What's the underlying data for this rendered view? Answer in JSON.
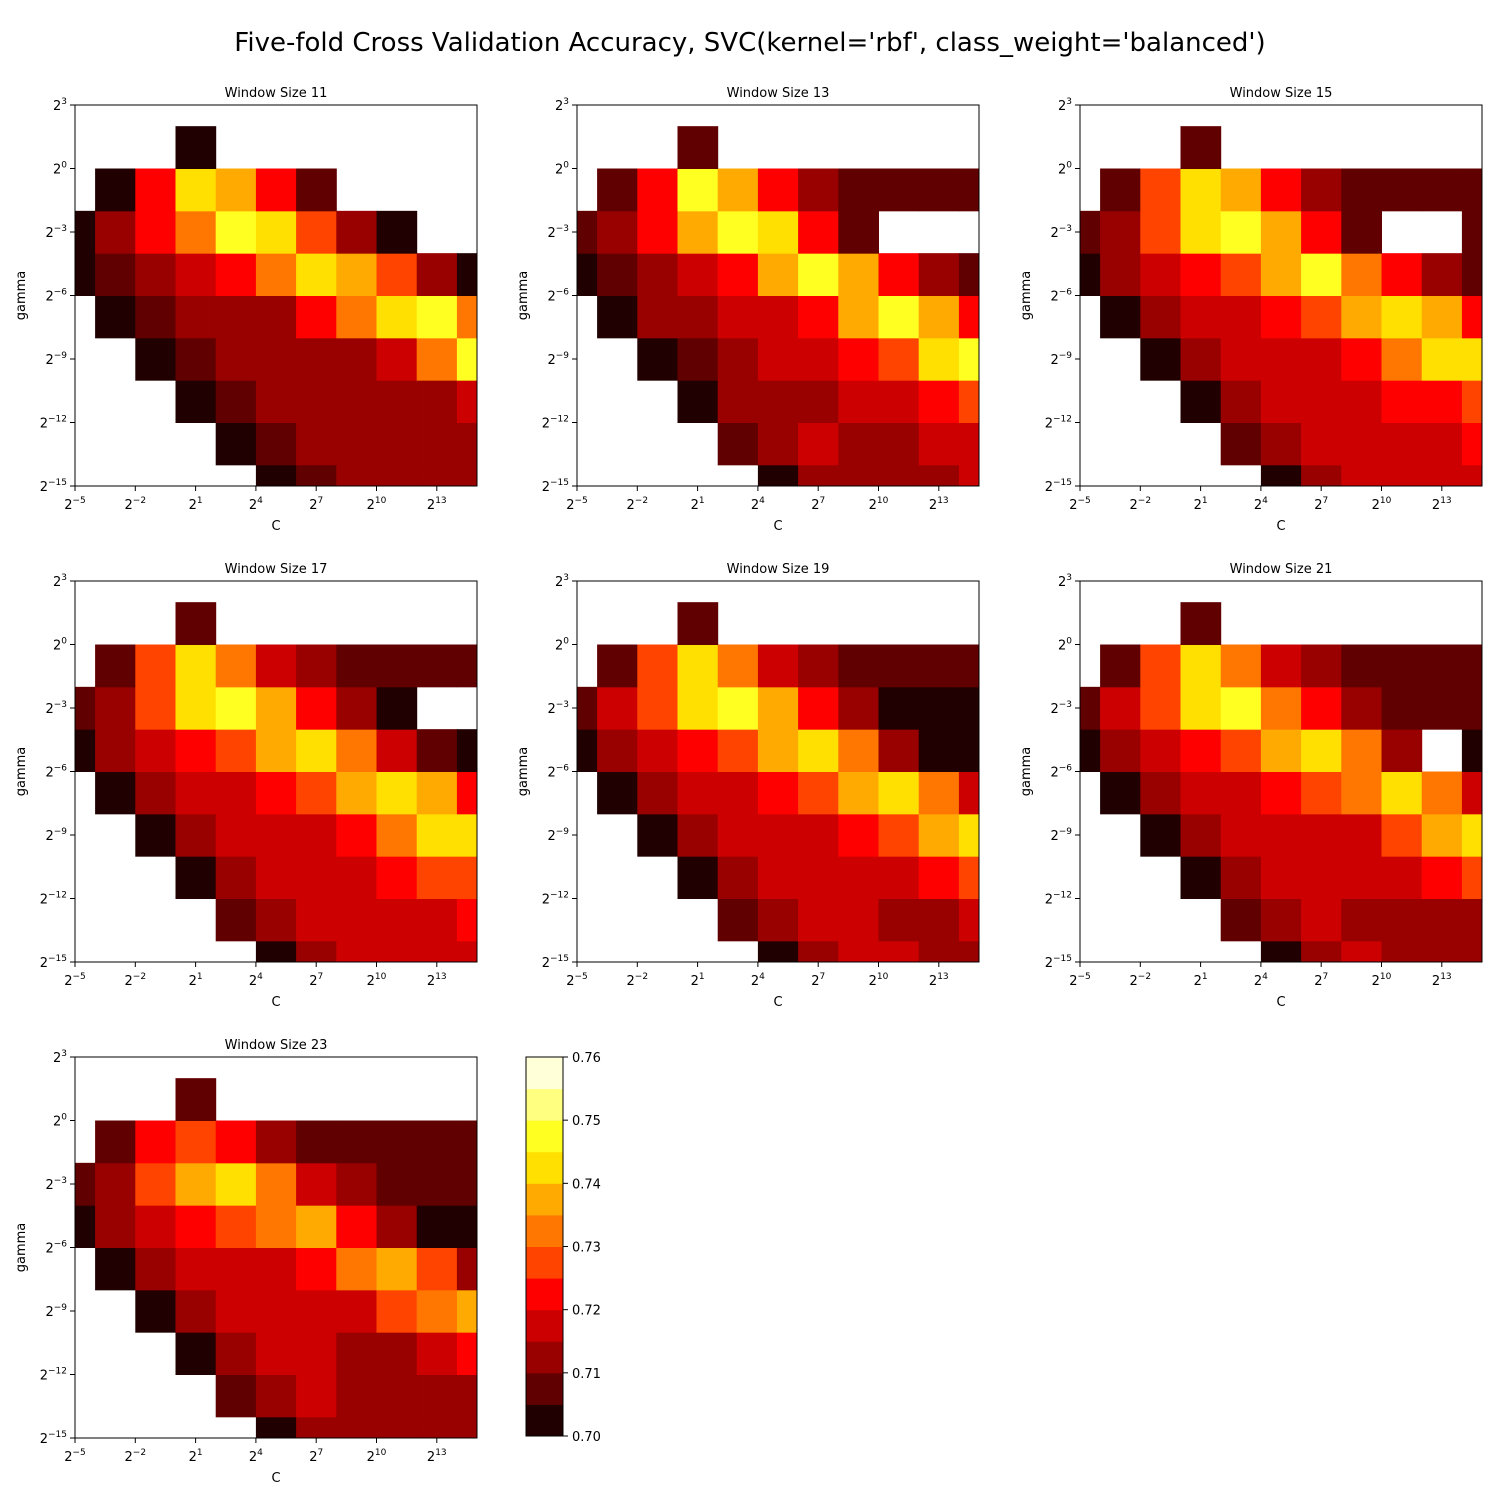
{
  "figure": {
    "title": "Five-fold Cross Validation Accuracy, SVC(kernel='rbf', class_weight='balanced')"
  },
  "chart_data": [
    {
      "type": "heatmap",
      "title": "Window Size 11",
      "xlabel": "C",
      "ylabel": "gamma",
      "x_exponents": [
        -5,
        -3,
        -1,
        1,
        3,
        5,
        7,
        9,
        11,
        13,
        15
      ],
      "y_exponents": [
        -15,
        -13,
        -11,
        -9,
        -7,
        -5,
        -3,
        -1,
        1,
        3
      ],
      "accuracy_grid": [
        [
          0,
          0,
          0,
          0,
          0,
          0.703,
          0.708,
          0.711,
          0.711,
          0.711,
          0.711
        ],
        [
          0,
          0,
          0,
          0,
          0.704,
          0.709,
          0.714,
          0.712,
          0.711,
          0.711,
          0.711
        ],
        [
          0,
          0,
          0,
          0.702,
          0.708,
          0.713,
          0.714,
          0.713,
          0.712,
          0.713,
          0.718
        ],
        [
          0,
          0,
          0.703,
          0.708,
          0.712,
          0.713,
          0.713,
          0.714,
          0.719,
          0.732,
          0.746
        ],
        [
          0,
          0.703,
          0.709,
          0.713,
          0.712,
          0.713,
          0.72,
          0.73,
          0.744,
          0.748,
          0.732
        ],
        [
          0.701,
          0.708,
          0.713,
          0.716,
          0.72,
          0.73,
          0.744,
          0.737,
          0.725,
          0.712,
          0.701
        ],
        [
          0.704,
          0.711,
          0.72,
          0.732,
          0.746,
          0.741,
          0.726,
          0.711,
          0.704,
          0.69,
          0.68
        ],
        [
          0.69,
          0.704,
          0.72,
          0.743,
          0.736,
          0.72,
          0.705,
          0.69,
          0.68,
          0.68,
          0.68
        ],
        [
          0.68,
          0.69,
          0.69,
          0.7,
          0.69,
          0.68,
          0.68,
          0.68,
          0.68,
          0.68,
          0.68
        ],
        [
          0.68,
          0.68,
          0.68,
          0.68,
          0.68,
          0.68,
          0.68,
          0.68,
          0.68,
          0.68,
          0.68
        ]
      ]
    },
    {
      "type": "heatmap",
      "title": "Window Size 13",
      "xlabel": "C",
      "ylabel": "gamma",
      "x_exponents": [
        -5,
        -3,
        -1,
        1,
        3,
        5,
        7,
        9,
        11,
        13,
        15
      ],
      "y_exponents": [
        -15,
        -13,
        -11,
        -9,
        -7,
        -5,
        -3,
        -1,
        1,
        3
      ],
      "accuracy_grid": [
        [
          0,
          0,
          0,
          0,
          0,
          0.704,
          0.713,
          0.714,
          0.714,
          0.714,
          0.715
        ],
        [
          0,
          0,
          0,
          0,
          0.705,
          0.711,
          0.715,
          0.714,
          0.711,
          0.716,
          0.718
        ],
        [
          0,
          0,
          0,
          0.703,
          0.71,
          0.714,
          0.714,
          0.716,
          0.719,
          0.721,
          0.726
        ],
        [
          0,
          0,
          0.704,
          0.709,
          0.714,
          0.715,
          0.716,
          0.72,
          0.729,
          0.74,
          0.745
        ],
        [
          0,
          0.704,
          0.71,
          0.714,
          0.715,
          0.717,
          0.724,
          0.736,
          0.745,
          0.738,
          0.722
        ],
        [
          0.702,
          0.709,
          0.714,
          0.717,
          0.724,
          0.736,
          0.746,
          0.735,
          0.72,
          0.712,
          0.705
        ],
        [
          0.705,
          0.712,
          0.724,
          0.738,
          0.748,
          0.74,
          0.722,
          0.709,
          0.69,
          0.69,
          0.69
        ],
        [
          0.69,
          0.705,
          0.724,
          0.745,
          0.735,
          0.72,
          0.71,
          0.705,
          0.705,
          0.705,
          0.705
        ],
        [
          0.68,
          0.69,
          0.69,
          0.705,
          0.69,
          0.68,
          0.68,
          0.68,
          0.68,
          0.68,
          0.68
        ],
        [
          0.68,
          0.68,
          0.68,
          0.68,
          0.68,
          0.68,
          0.68,
          0.68,
          0.68,
          0.68,
          0.68
        ]
      ]
    },
    {
      "type": "heatmap",
      "title": "Window Size 15",
      "xlabel": "C",
      "ylabel": "gamma",
      "x_exponents": [
        -5,
        -3,
        -1,
        1,
        3,
        5,
        7,
        9,
        11,
        13,
        15
      ],
      "y_exponents": [
        -15,
        -13,
        -11,
        -9,
        -7,
        -5,
        -3,
        -1,
        1,
        3
      ],
      "accuracy_grid": [
        [
          0,
          0,
          0,
          0,
          0,
          0.704,
          0.713,
          0.715,
          0.715,
          0.715,
          0.715
        ],
        [
          0,
          0,
          0,
          0,
          0.705,
          0.712,
          0.716,
          0.715,
          0.715,
          0.717,
          0.72
        ],
        [
          0,
          0,
          0,
          0.703,
          0.71,
          0.715,
          0.716,
          0.717,
          0.72,
          0.724,
          0.728
        ],
        [
          0,
          0,
          0.704,
          0.71,
          0.715,
          0.716,
          0.718,
          0.722,
          0.731,
          0.742,
          0.744
        ],
        [
          0,
          0.704,
          0.71,
          0.716,
          0.718,
          0.72,
          0.727,
          0.737,
          0.744,
          0.737,
          0.722
        ],
        [
          0.702,
          0.71,
          0.716,
          0.72,
          0.727,
          0.738,
          0.746,
          0.734,
          0.72,
          0.712,
          0.705
        ],
        [
          0.705,
          0.714,
          0.726,
          0.74,
          0.748,
          0.738,
          0.722,
          0.708,
          0.69,
          0.69,
          0.705
        ],
        [
          0.69,
          0.705,
          0.726,
          0.744,
          0.735,
          0.72,
          0.71,
          0.706,
          0.706,
          0.706,
          0.706
        ],
        [
          0.68,
          0.69,
          0.69,
          0.705,
          0.69,
          0.68,
          0.68,
          0.68,
          0.68,
          0.68,
          0.68
        ],
        [
          0.68,
          0.68,
          0.68,
          0.68,
          0.68,
          0.68,
          0.68,
          0.68,
          0.68,
          0.68,
          0.68
        ]
      ]
    },
    {
      "type": "heatmap",
      "title": "Window Size 17",
      "xlabel": "C",
      "ylabel": "gamma",
      "x_exponents": [
        -5,
        -3,
        -1,
        1,
        3,
        5,
        7,
        9,
        11,
        13,
        15
      ],
      "y_exponents": [
        -15,
        -13,
        -11,
        -9,
        -7,
        -5,
        -3,
        -1,
        1,
        3
      ],
      "accuracy_grid": [
        [
          0,
          0,
          0,
          0,
          0,
          0.704,
          0.714,
          0.716,
          0.716,
          0.716,
          0.716
        ],
        [
          0,
          0,
          0,
          0,
          0.706,
          0.713,
          0.717,
          0.716,
          0.716,
          0.718,
          0.721
        ],
        [
          0,
          0,
          0,
          0.703,
          0.711,
          0.716,
          0.717,
          0.718,
          0.721,
          0.725,
          0.729
        ],
        [
          0,
          0,
          0.704,
          0.711,
          0.716,
          0.717,
          0.719,
          0.723,
          0.73,
          0.74,
          0.743
        ],
        [
          0,
          0.704,
          0.711,
          0.716,
          0.718,
          0.721,
          0.727,
          0.735,
          0.742,
          0.735,
          0.722
        ],
        [
          0.702,
          0.711,
          0.716,
          0.721,
          0.728,
          0.738,
          0.744,
          0.732,
          0.715,
          0.705,
          0.702
        ],
        [
          0.705,
          0.714,
          0.727,
          0.74,
          0.747,
          0.735,
          0.72,
          0.71,
          0.7,
          0.69,
          0.69
        ],
        [
          0.69,
          0.705,
          0.727,
          0.742,
          0.732,
          0.718,
          0.71,
          0.706,
          0.706,
          0.706,
          0.706
        ],
        [
          0.68,
          0.69,
          0.69,
          0.705,
          0.69,
          0.68,
          0.68,
          0.68,
          0.68,
          0.68,
          0.68
        ],
        [
          0.68,
          0.68,
          0.68,
          0.68,
          0.68,
          0.68,
          0.68,
          0.68,
          0.68,
          0.68,
          0.68
        ]
      ]
    },
    {
      "type": "heatmap",
      "title": "Window Size 19",
      "xlabel": "C",
      "ylabel": "gamma",
      "x_exponents": [
        -5,
        -3,
        -1,
        1,
        3,
        5,
        7,
        9,
        11,
        13,
        15
      ],
      "y_exponents": [
        -15,
        -13,
        -11,
        -9,
        -7,
        -5,
        -3,
        -1,
        1,
        3
      ],
      "accuracy_grid": [
        [
          0,
          0,
          0,
          0,
          0,
          0.704,
          0.713,
          0.716,
          0.717,
          0.713,
          0.712
        ],
        [
          0,
          0,
          0,
          0,
          0.706,
          0.713,
          0.717,
          0.715,
          0.714,
          0.714,
          0.716
        ],
        [
          0,
          0,
          0,
          0.703,
          0.711,
          0.716,
          0.719,
          0.716,
          0.717,
          0.722,
          0.727
        ],
        [
          0,
          0,
          0.704,
          0.711,
          0.716,
          0.717,
          0.717,
          0.72,
          0.728,
          0.738,
          0.742
        ],
        [
          0,
          0.704,
          0.711,
          0.716,
          0.718,
          0.72,
          0.726,
          0.735,
          0.742,
          0.733,
          0.718
        ],
        [
          0.702,
          0.711,
          0.717,
          0.722,
          0.729,
          0.738,
          0.744,
          0.73,
          0.712,
          0.703,
          0.701
        ],
        [
          0.705,
          0.715,
          0.728,
          0.741,
          0.747,
          0.735,
          0.72,
          0.712,
          0.702,
          0.701,
          0.701
        ],
        [
          0.69,
          0.706,
          0.728,
          0.742,
          0.732,
          0.716,
          0.711,
          0.707,
          0.707,
          0.707,
          0.707
        ],
        [
          0.68,
          0.69,
          0.69,
          0.705,
          0.69,
          0.68,
          0.68,
          0.68,
          0.68,
          0.68,
          0.68
        ],
        [
          0.68,
          0.68,
          0.68,
          0.68,
          0.68,
          0.68,
          0.68,
          0.68,
          0.68,
          0.68,
          0.68
        ]
      ]
    },
    {
      "type": "heatmap",
      "title": "Window Size 21",
      "xlabel": "C",
      "ylabel": "gamma",
      "x_exponents": [
        -5,
        -3,
        -1,
        1,
        3,
        5,
        7,
        9,
        11,
        13,
        15
      ],
      "y_exponents": [
        -15,
        -13,
        -11,
        -9,
        -7,
        -5,
        -3,
        -1,
        1,
        3
      ],
      "accuracy_grid": [
        [
          0,
          0,
          0,
          0,
          0,
          0.704,
          0.713,
          0.716,
          0.713,
          0.712,
          0.712
        ],
        [
          0,
          0,
          0,
          0,
          0.706,
          0.713,
          0.716,
          0.714,
          0.712,
          0.712,
          0.714
        ],
        [
          0,
          0,
          0,
          0.703,
          0.711,
          0.716,
          0.717,
          0.715,
          0.716,
          0.72,
          0.725
        ],
        [
          0,
          0,
          0.704,
          0.711,
          0.716,
          0.719,
          0.716,
          0.719,
          0.726,
          0.737,
          0.741
        ],
        [
          0,
          0.704,
          0.711,
          0.716,
          0.718,
          0.72,
          0.725,
          0.733,
          0.741,
          0.731,
          0.716
        ],
        [
          0.702,
          0.711,
          0.717,
          0.722,
          0.729,
          0.737,
          0.744,
          0.73,
          0.713,
          0.69,
          0.703
        ],
        [
          0.705,
          0.715,
          0.728,
          0.741,
          0.746,
          0.734,
          0.72,
          0.713,
          0.706,
          0.705,
          0.705
        ],
        [
          0.69,
          0.706,
          0.728,
          0.74,
          0.731,
          0.716,
          0.711,
          0.707,
          0.707,
          0.706,
          0.706
        ],
        [
          0.68,
          0.69,
          0.69,
          0.705,
          0.69,
          0.68,
          0.68,
          0.68,
          0.68,
          0.68,
          0.68
        ],
        [
          0.68,
          0.68,
          0.68,
          0.68,
          0.68,
          0.68,
          0.68,
          0.68,
          0.68,
          0.68,
          0.68
        ]
      ]
    },
    {
      "type": "heatmap",
      "title": "Window Size 23",
      "xlabel": "C",
      "ylabel": "gamma",
      "x_exponents": [
        -5,
        -3,
        -1,
        1,
        3,
        5,
        7,
        9,
        11,
        13,
        15
      ],
      "y_exponents": [
        -15,
        -13,
        -11,
        -9,
        -7,
        -5,
        -3,
        -1,
        1,
        3
      ],
      "accuracy_grid": [
        [
          0,
          0,
          0,
          0,
          0,
          0.703,
          0.711,
          0.714,
          0.712,
          0.711,
          0.711
        ],
        [
          0,
          0,
          0,
          0,
          0.705,
          0.712,
          0.715,
          0.713,
          0.711,
          0.711,
          0.713
        ],
        [
          0,
          0,
          0,
          0.703,
          0.71,
          0.715,
          0.716,
          0.714,
          0.714,
          0.718,
          0.723
        ],
        [
          0,
          0,
          0.704,
          0.71,
          0.715,
          0.717,
          0.715,
          0.718,
          0.725,
          0.734,
          0.738
        ],
        [
          0,
          0.704,
          0.71,
          0.715,
          0.717,
          0.719,
          0.724,
          0.731,
          0.736,
          0.727,
          0.712
        ],
        [
          0.702,
          0.71,
          0.716,
          0.72,
          0.726,
          0.733,
          0.737,
          0.724,
          0.71,
          0.704,
          0.703
        ],
        [
          0.705,
          0.714,
          0.726,
          0.737,
          0.741,
          0.73,
          0.717,
          0.711,
          0.708,
          0.706,
          0.706
        ],
        [
          0.69,
          0.706,
          0.722,
          0.728,
          0.722,
          0.713,
          0.709,
          0.706,
          0.706,
          0.706,
          0.706
        ],
        [
          0.68,
          0.69,
          0.69,
          0.705,
          0.69,
          0.68,
          0.68,
          0.68,
          0.68,
          0.68,
          0.68
        ],
        [
          0.68,
          0.68,
          0.68,
          0.68,
          0.68,
          0.68,
          0.68,
          0.68,
          0.68,
          0.68,
          0.68
        ]
      ]
    }
  ],
  "axis_ticks": {
    "x_base": "2",
    "x_exponents": [
      "−5",
      "−2",
      "1",
      "4",
      "7",
      "10",
      "13"
    ],
    "x_values": [
      -5,
      -2,
      1,
      4,
      7,
      10,
      13
    ],
    "y_base": "2",
    "y_exponents": [
      "3",
      "0",
      "−3",
      "−6",
      "−9",
      "−12",
      "−15"
    ],
    "y_values": [
      3,
      0,
      -3,
      -6,
      -9,
      -12,
      -15
    ],
    "x_range_exponent": [
      -5,
      15
    ],
    "y_range_exponent": [
      -15,
      3
    ]
  },
  "colorbar": {
    "levels": [
      0.7,
      0.705,
      0.71,
      0.715,
      0.72,
      0.725,
      0.73,
      0.735,
      0.74,
      0.745,
      0.75,
      0.755,
      0.76
    ],
    "colors": [
      "#200000",
      "#600000",
      "#990000",
      "#cc0000",
      "#ff0000",
      "#ff4400",
      "#ff7700",
      "#ffaa00",
      "#ffe000",
      "#ffff22",
      "#ffff80",
      "#ffffd8"
    ],
    "tick_labels": [
      "0.70",
      "0.71",
      "0.72",
      "0.73",
      "0.74",
      "0.75",
      "0.76"
    ],
    "tick_values": [
      0.7,
      0.71,
      0.72,
      0.73,
      0.74,
      0.75,
      0.76
    ]
  }
}
